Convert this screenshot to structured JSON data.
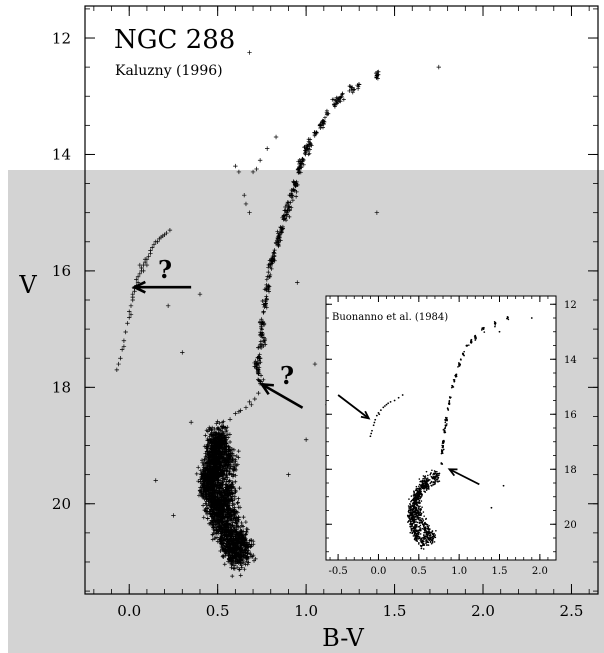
{
  "shade_color": "#d3d3d3",
  "ink_color": "#000000",
  "chart_data": [
    {
      "type": "scatter",
      "title": "NGC 288",
      "subtitle": "Kaluzny (1996)",
      "xlabel": "B-V",
      "ylabel": "V",
      "xlim": [
        -0.25,
        2.65
      ],
      "ylim": [
        21.55,
        11.45
      ],
      "y_inverted": true,
      "xticks": [
        "0.0",
        "0.5",
        "1.0",
        "1.5",
        "2.0",
        "2.5"
      ],
      "xtick_values": [
        0.0,
        0.5,
        1.0,
        1.5,
        2.0,
        2.5
      ],
      "yticks": [
        "12",
        "14",
        "16",
        "18",
        "20"
      ],
      "ytick_values": [
        12,
        14,
        16,
        18,
        20
      ],
      "marker": "plus",
      "annotations": [
        {
          "text": "?",
          "x": 0.3,
          "y": 16.0
        },
        {
          "text": "?",
          "x": 0.92,
          "y": 17.8
        }
      ],
      "arrows": [
        {
          "from": [
            0.35,
            16.28
          ],
          "to": [
            0.03,
            16.28
          ]
        },
        {
          "from": [
            0.98,
            18.35
          ],
          "to": [
            0.75,
            17.95
          ]
        }
      ],
      "series": [
        {
          "population": "blue horizontal branch",
          "points": [
            [
              -0.05,
              17.5
            ],
            [
              -0.06,
              17.6
            ],
            [
              -0.04,
              17.35
            ],
            [
              -0.03,
              17.2
            ],
            [
              -0.02,
              17.05
            ],
            [
              -0.01,
              16.9
            ],
            [
              0.0,
              16.8
            ],
            [
              0.0,
              16.7
            ],
            [
              0.01,
              16.6
            ],
            [
              0.02,
              16.5
            ],
            [
              0.02,
              16.4
            ],
            [
              0.03,
              16.35
            ],
            [
              0.03,
              16.3
            ],
            [
              0.04,
              16.25
            ],
            [
              0.05,
              16.2
            ],
            [
              0.05,
              16.1
            ],
            [
              0.06,
              16.05
            ],
            [
              0.07,
              16.0
            ],
            [
              0.07,
              15.95
            ],
            [
              0.08,
              15.9
            ],
            [
              0.09,
              15.85
            ],
            [
              0.1,
              15.8
            ],
            [
              0.11,
              15.75
            ],
            [
              0.12,
              15.7
            ],
            [
              0.13,
              15.6
            ],
            [
              0.14,
              15.55
            ],
            [
              0.15,
              15.5
            ],
            [
              0.17,
              15.45
            ],
            [
              0.19,
              15.4
            ],
            [
              0.21,
              15.35
            ],
            [
              0.23,
              15.3
            ],
            [
              -0.03,
              17.3
            ],
            [
              0.01,
              16.75
            ],
            [
              0.04,
              16.15
            ],
            [
              0.06,
              15.9
            ],
            [
              0.09,
              15.8
            ],
            [
              0.12,
              15.65
            ],
            [
              0.16,
              15.5
            ],
            [
              0.2,
              15.38
            ],
            [
              -0.07,
              17.7
            ],
            [
              0.02,
              16.45
            ],
            [
              0.05,
              16.3
            ],
            [
              0.08,
              16.0
            ],
            [
              0.1,
              15.9
            ],
            [
              0.18,
              15.42
            ]
          ]
        },
        {
          "population": "red giant branch",
          "points": [
            [
              0.74,
              17.9
            ],
            [
              0.73,
              17.7
            ],
            [
              0.74,
              17.5
            ],
            [
              0.74,
              17.3
            ],
            [
              0.75,
              17.1
            ],
            [
              0.75,
              16.9
            ],
            [
              0.76,
              16.7
            ],
            [
              0.77,
              16.5
            ],
            [
              0.78,
              16.3
            ],
            [
              0.79,
              16.1
            ],
            [
              0.8,
              15.9
            ],
            [
              0.82,
              15.7
            ],
            [
              0.84,
              15.5
            ],
            [
              0.86,
              15.3
            ],
            [
              0.88,
              15.1
            ],
            [
              0.9,
              14.9
            ],
            [
              0.92,
              14.7
            ],
            [
              0.94,
              14.5
            ],
            [
              0.96,
              14.3
            ],
            [
              0.98,
              14.1
            ],
            [
              1.0,
              13.95
            ],
            [
              1.02,
              13.8
            ],
            [
              1.05,
              13.65
            ],
            [
              1.08,
              13.5
            ],
            [
              1.12,
              13.3
            ],
            [
              1.16,
              13.15
            ],
            [
              1.2,
              13.0
            ],
            [
              1.26,
              12.85
            ],
            [
              0.72,
              17.6
            ],
            [
              0.76,
              17.2
            ],
            [
              0.77,
              16.6
            ],
            [
              0.81,
              15.8
            ],
            [
              0.85,
              15.4
            ],
            [
              0.89,
              15.0
            ],
            [
              0.93,
              14.6
            ],
            [
              0.97,
              14.2
            ],
            [
              1.01,
              13.9
            ],
            [
              1.09,
              13.45
            ],
            [
              1.18,
              13.1
            ],
            [
              1.3,
              12.8
            ],
            [
              1.4,
              12.65
            ]
          ]
        },
        {
          "population": "asymptotic giant branch",
          "points": [
            [
              0.68,
              15.0
            ],
            [
              0.66,
              14.85
            ],
            [
              0.65,
              14.7
            ],
            [
              0.7,
              14.3
            ],
            [
              0.72,
              14.25
            ],
            [
              0.74,
              14.1
            ],
            [
              0.78,
              13.9
            ],
            [
              0.83,
              13.7
            ],
            [
              0.6,
              14.2
            ],
            [
              0.62,
              14.3
            ]
          ]
        },
        {
          "population": "subgiant branch",
          "points": [
            [
              0.6,
              18.45
            ],
            [
              0.63,
              18.4
            ],
            [
              0.66,
              18.35
            ],
            [
              0.69,
              18.3
            ],
            [
              0.71,
              18.2
            ],
            [
              0.73,
              18.1
            ],
            [
              0.57,
              18.55
            ],
            [
              0.54,
              18.7
            ],
            [
              0.62,
              18.42
            ],
            [
              0.68,
              18.25
            ]
          ]
        },
        {
          "population": "main-sequence turnoff",
          "points": [
            [
              0.5,
              18.9
            ],
            [
              0.48,
              19.1
            ],
            [
              0.47,
              19.3
            ],
            [
              0.46,
              19.5
            ],
            [
              0.46,
              19.7
            ],
            [
              0.47,
              19.9
            ],
            [
              0.49,
              20.1
            ],
            [
              0.51,
              20.3
            ],
            [
              0.54,
              20.5
            ],
            [
              0.57,
              20.7
            ],
            [
              0.6,
              20.9
            ],
            [
              0.52,
              19.0
            ],
            [
              0.5,
              19.4
            ],
            [
              0.55,
              19.8
            ],
            [
              0.58,
              20.2
            ],
            [
              0.62,
              20.6
            ],
            [
              0.44,
              19.6
            ],
            [
              0.65,
              20.8
            ],
            [
              0.53,
              20.0
            ],
            [
              0.56,
              19.3
            ]
          ]
        },
        {
          "population": "field stars",
          "points": [
            [
              1.4,
              15.0
            ],
            [
              1.3,
              18.0
            ],
            [
              0.35,
              18.6
            ],
            [
              0.22,
              16.6
            ],
            [
              0.9,
              19.5
            ],
            [
              1.05,
              17.6
            ],
            [
              0.3,
              17.4
            ],
            [
              0.15,
              19.6
            ],
            [
              1.25,
              20.4
            ],
            [
              0.95,
              16.2
            ],
            [
              1.0,
              18.9
            ],
            [
              0.25,
              20.2
            ],
            [
              0.68,
              12.25
            ],
            [
              1.75,
              12.5
            ],
            [
              1.12,
              18.3
            ],
            [
              0.4,
              16.4
            ]
          ]
        }
      ]
    },
    {
      "type": "scatter",
      "title": "Buonanno et al. (1984)",
      "xlabel": "",
      "ylabel": "",
      "xlim": [
        -0.65,
        2.2
      ],
      "ylim": [
        21.3,
        11.7
      ],
      "y_inverted": true,
      "xticks": [
        "-0.5",
        "0.0",
        "0.5",
        "1.0",
        "1.5",
        "2.0"
      ],
      "xtick_values": [
        -0.5,
        0.0,
        0.5,
        1.0,
        1.5,
        2.0
      ],
      "yticks": [
        "12",
        "14",
        "16",
        "18",
        "20"
      ],
      "ytick_values": [
        12,
        14,
        16,
        18,
        20
      ],
      "marker": "dot",
      "arrows": [
        {
          "from": [
            -0.5,
            15.3
          ],
          "to": [
            -0.12,
            16.15
          ]
        },
        {
          "from": [
            1.25,
            18.55
          ],
          "to": [
            0.88,
            18.0
          ]
        }
      ],
      "series": [
        {
          "population": "blue horizontal branch",
          "points": [
            [
              -0.1,
              16.8
            ],
            [
              -0.08,
              16.6
            ],
            [
              -0.06,
              16.4
            ],
            [
              -0.04,
              16.2
            ],
            [
              -0.02,
              16.05
            ],
            [
              0.0,
              15.95
            ],
            [
              0.03,
              15.85
            ],
            [
              0.06,
              15.75
            ],
            [
              0.1,
              15.65
            ],
            [
              0.15,
              15.55
            ],
            [
              0.2,
              15.5
            ],
            [
              -0.05,
              16.3
            ],
            [
              0.01,
              16.0
            ],
            [
              0.08,
              15.7
            ],
            [
              -0.09,
              16.7
            ],
            [
              0.12,
              15.6
            ],
            [
              0.25,
              15.4
            ],
            [
              0.3,
              15.3
            ]
          ]
        },
        {
          "population": "red giant branch",
          "points": [
            [
              0.78,
              17.8
            ],
            [
              0.79,
              17.4
            ],
            [
              0.8,
              17.0
            ],
            [
              0.82,
              16.6
            ],
            [
              0.84,
              16.2
            ],
            [
              0.86,
              15.8
            ],
            [
              0.89,
              15.4
            ],
            [
              0.92,
              15.0
            ],
            [
              0.96,
              14.6
            ],
            [
              1.0,
              14.2
            ],
            [
              1.05,
              13.8
            ],
            [
              1.1,
              13.5
            ],
            [
              1.2,
              13.2
            ],
            [
              1.3,
              12.9
            ],
            [
              1.45,
              12.7
            ],
            [
              1.6,
              12.5
            ],
            [
              0.8,
              17.2
            ],
            [
              0.83,
              16.4
            ],
            [
              0.88,
              15.6
            ],
            [
              0.94,
              14.8
            ],
            [
              1.02,
              14.0
            ],
            [
              1.15,
              13.35
            ]
          ]
        },
        {
          "population": "main sequence",
          "points": [
            [
              0.55,
              18.6
            ],
            [
              0.5,
              18.9
            ],
            [
              0.45,
              19.2
            ],
            [
              0.42,
              19.5
            ],
            [
              0.42,
              19.8
            ],
            [
              0.44,
              20.1
            ],
            [
              0.48,
              20.4
            ],
            [
              0.55,
              20.6
            ],
            [
              0.65,
              20.5
            ],
            [
              0.6,
              18.5
            ],
            [
              0.7,
              18.3
            ],
            [
              0.5,
              19.6
            ],
            [
              0.55,
              20.0
            ],
            [
              0.6,
              20.3
            ],
            [
              0.48,
              19.0
            ]
          ]
        },
        {
          "population": "field stars",
          "points": [
            [
              1.55,
              18.6
            ],
            [
              1.4,
              19.4
            ],
            [
              1.2,
              13.3
            ],
            [
              1.9,
              12.5
            ],
            [
              1.5,
              13.0
            ]
          ]
        }
      ]
    }
  ]
}
